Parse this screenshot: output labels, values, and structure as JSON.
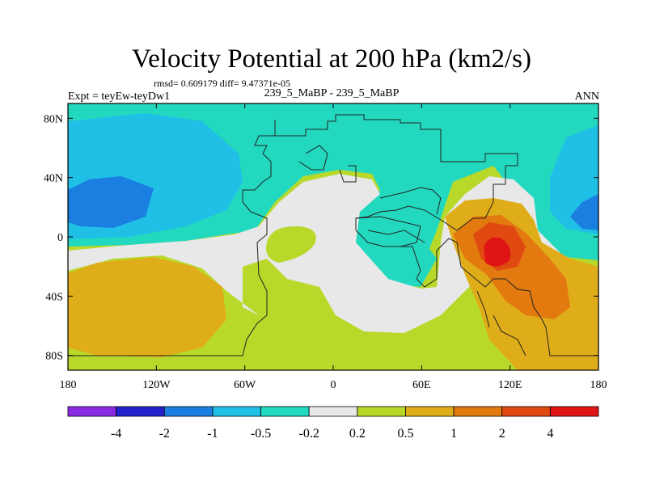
{
  "chart_data": {
    "type": "heatmap",
    "title": "Velocity Potential at 200 hPa (km2/s)",
    "stats": "rmsd= 0.609179 diff= 9.47371e-05",
    "left_label": "Expt = teyEw-teyDw1",
    "center_label": "239_5_MaBP - 239_5_MaBP",
    "right_label": "ANN",
    "x_range": [
      -180,
      180
    ],
    "y_range": [
      -90,
      90
    ],
    "x_ticks": [
      {
        "value": -180,
        "label": "180"
      },
      {
        "value": -120,
        "label": "120W"
      },
      {
        "value": -60,
        "label": "60W"
      },
      {
        "value": 0,
        "label": "0"
      },
      {
        "value": 60,
        "label": "60E"
      },
      {
        "value": 120,
        "label": "120E"
      },
      {
        "value": 180,
        "label": "180"
      }
    ],
    "y_ticks": [
      {
        "value": 80,
        "label": "80N"
      },
      {
        "value": 40,
        "label": "40N"
      },
      {
        "value": 0,
        "label": "0"
      },
      {
        "value": -40,
        "label": "40S"
      },
      {
        "value": -80,
        "label": "80S"
      }
    ],
    "colorbar": {
      "colors": [
        "#8a2be2",
        "#2222cc",
        "#1a7fe0",
        "#1fbfe6",
        "#22d9c0",
        "#e8e8e8",
        "#b8d82a",
        "#e0ad1a",
        "#e27a10",
        "#e04a10",
        "#e01414"
      ],
      "labels": [
        "-4",
        "-2",
        "-1",
        "-0.5",
        "-0.2",
        "0.2",
        "0.5",
        "1",
        "2",
        "4"
      ]
    }
  }
}
